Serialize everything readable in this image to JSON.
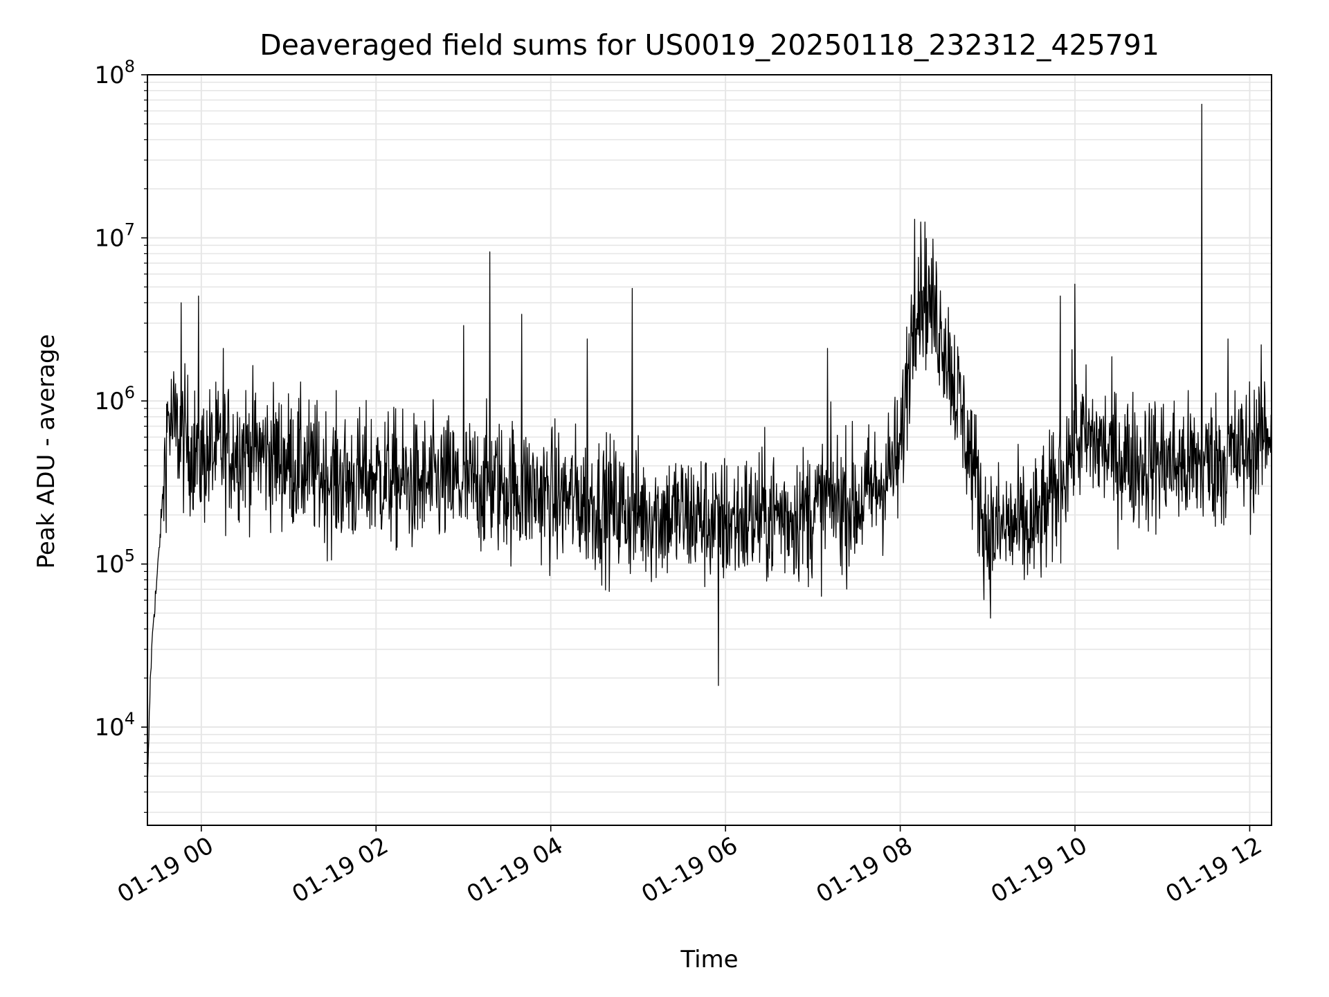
{
  "chart_data": {
    "type": "line",
    "title": "Deaveraged field sums for US0019_20250118_232312_425791",
    "xlabel": "Time",
    "ylabel": "Peak ADU - average",
    "y_scale": "log",
    "ylim": [
      2500,
      100000000
    ],
    "xlim": [
      "2025-01-18 23:23",
      "2025-01-19 12:15"
    ],
    "grid": true,
    "line_color": "#000000",
    "grid_color": "#e6e6e6",
    "x_ticks": [
      {
        "label": "01-19 00",
        "time": "2025-01-19 00:00"
      },
      {
        "label": "01-19 02",
        "time": "2025-01-19 02:00"
      },
      {
        "label": "01-19 04",
        "time": "2025-01-19 04:00"
      },
      {
        "label": "01-19 06",
        "time": "2025-01-19 06:00"
      },
      {
        "label": "01-19 08",
        "time": "2025-01-19 08:00"
      },
      {
        "label": "01-19 10",
        "time": "2025-01-19 10:00"
      },
      {
        "label": "01-19 12",
        "time": "2025-01-19 12:00"
      }
    ],
    "y_ticks": [
      {
        "base": "10",
        "exp": "4",
        "value": 10000
      },
      {
        "base": "10",
        "exp": "5",
        "value": 100000
      },
      {
        "base": "10",
        "exp": "6",
        "value": 1000000
      },
      {
        "base": "10",
        "exp": "7",
        "value": 10000000
      },
      {
        "base": "10",
        "exp": "8",
        "value": 100000000
      }
    ],
    "series": [
      {
        "x": [
          "2025-01-18 23:23",
          "2025-01-18 23:25",
          "2025-01-18 23:27",
          "2025-01-18 23:29",
          "2025-01-18 23:31",
          "2025-01-18 23:34",
          "2025-01-18 23:37",
          "2025-01-18 23:40",
          "2025-01-18 23:43",
          "2025-01-18 23:46",
          "2025-01-18 23:50",
          "2025-01-18 23:55",
          "2025-01-19 00:00",
          "2025-01-19 00:15",
          "2025-01-19 00:30",
          "2025-01-19 00:45",
          "2025-01-19 01:00",
          "2025-01-19 01:15",
          "2025-01-19 01:30",
          "2025-01-19 01:45",
          "2025-01-19 02:00",
          "2025-01-19 02:15",
          "2025-01-19 02:30",
          "2025-01-19 02:45",
          "2025-01-19 03:00",
          "2025-01-19 03:15",
          "2025-01-19 03:30",
          "2025-01-19 03:45",
          "2025-01-19 04:00",
          "2025-01-19 04:15",
          "2025-01-19 04:30",
          "2025-01-19 04:45",
          "2025-01-19 05:00",
          "2025-01-19 05:15",
          "2025-01-19 05:30",
          "2025-01-19 05:45",
          "2025-01-19 06:00",
          "2025-01-19 06:15",
          "2025-01-19 06:30",
          "2025-01-19 06:45",
          "2025-01-19 07:00",
          "2025-01-19 07:15",
          "2025-01-19 07:30",
          "2025-01-19 07:45",
          "2025-01-19 08:00",
          "2025-01-19 08:05",
          "2025-01-19 08:10",
          "2025-01-19 08:15",
          "2025-01-19 08:20",
          "2025-01-19 08:30",
          "2025-01-19 08:40",
          "2025-01-19 08:50",
          "2025-01-19 09:00",
          "2025-01-19 09:15",
          "2025-01-19 09:30",
          "2025-01-19 09:45",
          "2025-01-19 10:00",
          "2025-01-19 10:15",
          "2025-01-19 10:30",
          "2025-01-19 10:45",
          "2025-01-19 11:00",
          "2025-01-19 11:15",
          "2025-01-19 11:30",
          "2025-01-19 11:45",
          "2025-01-19 12:00",
          "2025-01-19 12:15"
        ],
        "y": [
          4000,
          20000,
          45000,
          70000,
          120000,
          300000,
          800000,
          700000,
          650000,
          600000,
          550000,
          500000,
          450000,
          500000,
          520000,
          480000,
          430000,
          380000,
          340000,
          320000,
          350000,
          320000,
          300000,
          320000,
          300000,
          310000,
          300000,
          280000,
          260000,
          250000,
          240000,
          220000,
          210000,
          200000,
          200000,
          190000,
          180000,
          190000,
          200000,
          200000,
          210000,
          250000,
          230000,
          300000,
          450000,
          1500000,
          4000000,
          5000000,
          4000000,
          2500000,
          1000000,
          400000,
          150000,
          170000,
          160000,
          250000,
          600000,
          550000,
          450000,
          420000,
          430000,
          400000,
          420000,
          450000,
          500000,
          700000
        ]
      }
    ],
    "spikes": [
      {
        "x": "2025-01-18 23:46",
        "y": 4000000
      },
      {
        "x": "2025-01-18 23:58",
        "y": 4400000
      },
      {
        "x": "2025-01-19 00:15",
        "y": 2100000
      },
      {
        "x": "2025-01-19 03:00",
        "y": 2900000
      },
      {
        "x": "2025-01-19 03:18",
        "y": 8200000
      },
      {
        "x": "2025-01-19 03:40",
        "y": 3400000
      },
      {
        "x": "2025-01-19 04:25",
        "y": 2400000
      },
      {
        "x": "2025-01-19 04:56",
        "y": 4900000
      },
      {
        "x": "2025-01-19 05:55",
        "y": 18000
      },
      {
        "x": "2025-01-19 07:10",
        "y": 2100000
      },
      {
        "x": "2025-01-19 08:10",
        "y": 13000000
      },
      {
        "x": "2025-01-19 08:17",
        "y": 12500000
      },
      {
        "x": "2025-01-19 09:50",
        "y": 4400000
      },
      {
        "x": "2025-01-19 10:00",
        "y": 5200000
      },
      {
        "x": "2025-01-19 11:27",
        "y": 66000000
      },
      {
        "x": "2025-01-19 11:45",
        "y": 2400000
      }
    ]
  }
}
